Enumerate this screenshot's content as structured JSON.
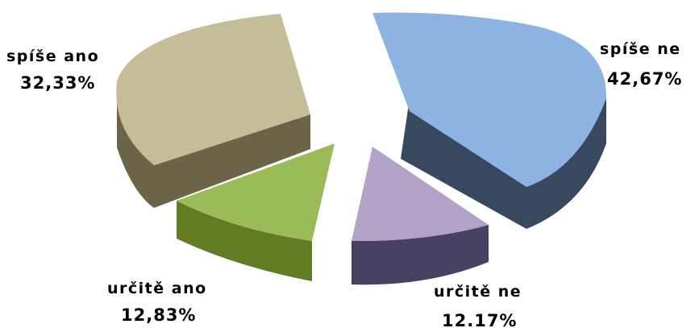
{
  "chart_data": {
    "type": "pie",
    "title": "",
    "style": "3d-exploded",
    "slices": [
      {
        "label": "spíše ne",
        "value": 42.67,
        "value_label": "42,67%",
        "color": "#8db3e2"
      },
      {
        "label": "určitě ne",
        "value": 12.17,
        "value_label": "12.17%",
        "color": "#b3a2c7"
      },
      {
        "label": "určitě ano",
        "value": 12.83,
        "value_label": "12,83%",
        "color": "#9bbb59"
      },
      {
        "label": "spíše ano",
        "value": 32.33,
        "value_label": "32,33%",
        "color": "#c4bd97"
      }
    ],
    "legend": "none",
    "labels": "outside"
  }
}
